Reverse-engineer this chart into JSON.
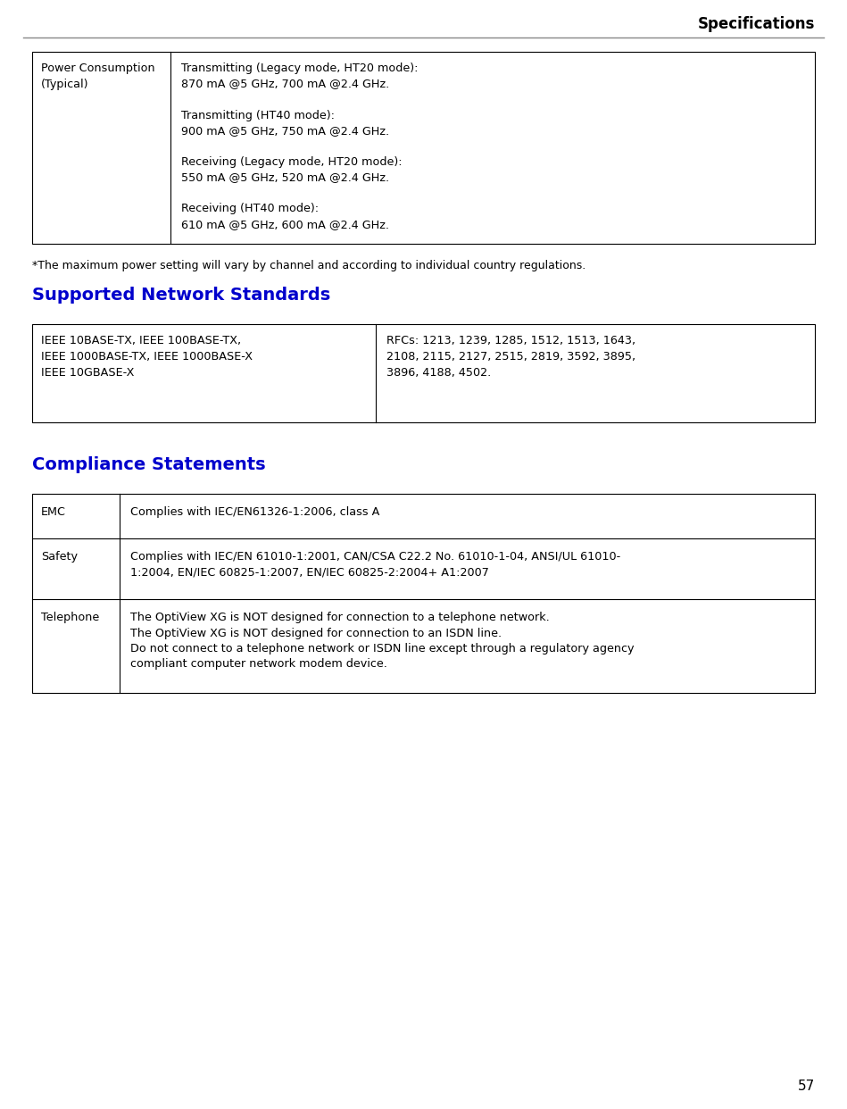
{
  "title": "Specifications",
  "page_number": "57",
  "bg_color": "#ffffff",
  "title_color": "#000000",
  "header_line_color": "#888888",
  "section_heading_color": "#0000cc",
  "table_border_color": "#000000",
  "body_text_color": "#000000",
  "power_table": {
    "col1_header": "Power Consumption\n(Typical)",
    "col2_text": "Transmitting (Legacy mode, HT20 mode):\n870 mA @5 GHz, 700 mA @2.4 GHz.\n\nTransmitting (HT40 mode):\n900 mA @5 GHz, 750 mA @2.4 GHz.\n\nReceiving (Legacy mode, HT20 mode):\n550 mA @5 GHz, 520 mA @2.4 GHz.\n\nReceiving (HT40 mode):\n610 mA @5 GHz, 600 mA @2.4 GHz."
  },
  "footnote": "*The maximum power setting will vary by channel and according to individual country regulations.",
  "section1_title": "Supported Network Standards",
  "network_table": {
    "col1": "IEEE 10BASE-TX, IEEE 100BASE-TX,\nIEEE 1000BASE-TX, IEEE 1000BASE-X\nIEEE 10GBASE-X",
    "col2": "RFCs: 1213, 1239, 1285, 1512, 1513, 1643,\n2108, 2115, 2127, 2515, 2819, 3592, 3895,\n3896, 4188, 4502."
  },
  "section2_title": "Compliance Statements",
  "compliance_table": [
    {
      "col1": "EMC",
      "col2": "Complies with IEC/EN61326-1:2006, class A"
    },
    {
      "col1": "Safety",
      "col2": "Complies with IEC/EN 61010-1:2001, CAN/CSA C22.2 No. 61010-1-04, ANSI/UL 61010-\n1:2004, EN/IEC 60825-1:2007, EN/IEC 60825-2:2004+ A1:2007"
    },
    {
      "col1": "Telephone",
      "col2": "The OptiView XG is NOT designed for connection to a telephone network.\nThe OptiView XG is NOT designed for connection to an ISDN line.\nDo not connect to a telephone network or ISDN line except through a regulatory agency\ncompliant computer network modem device."
    }
  ]
}
